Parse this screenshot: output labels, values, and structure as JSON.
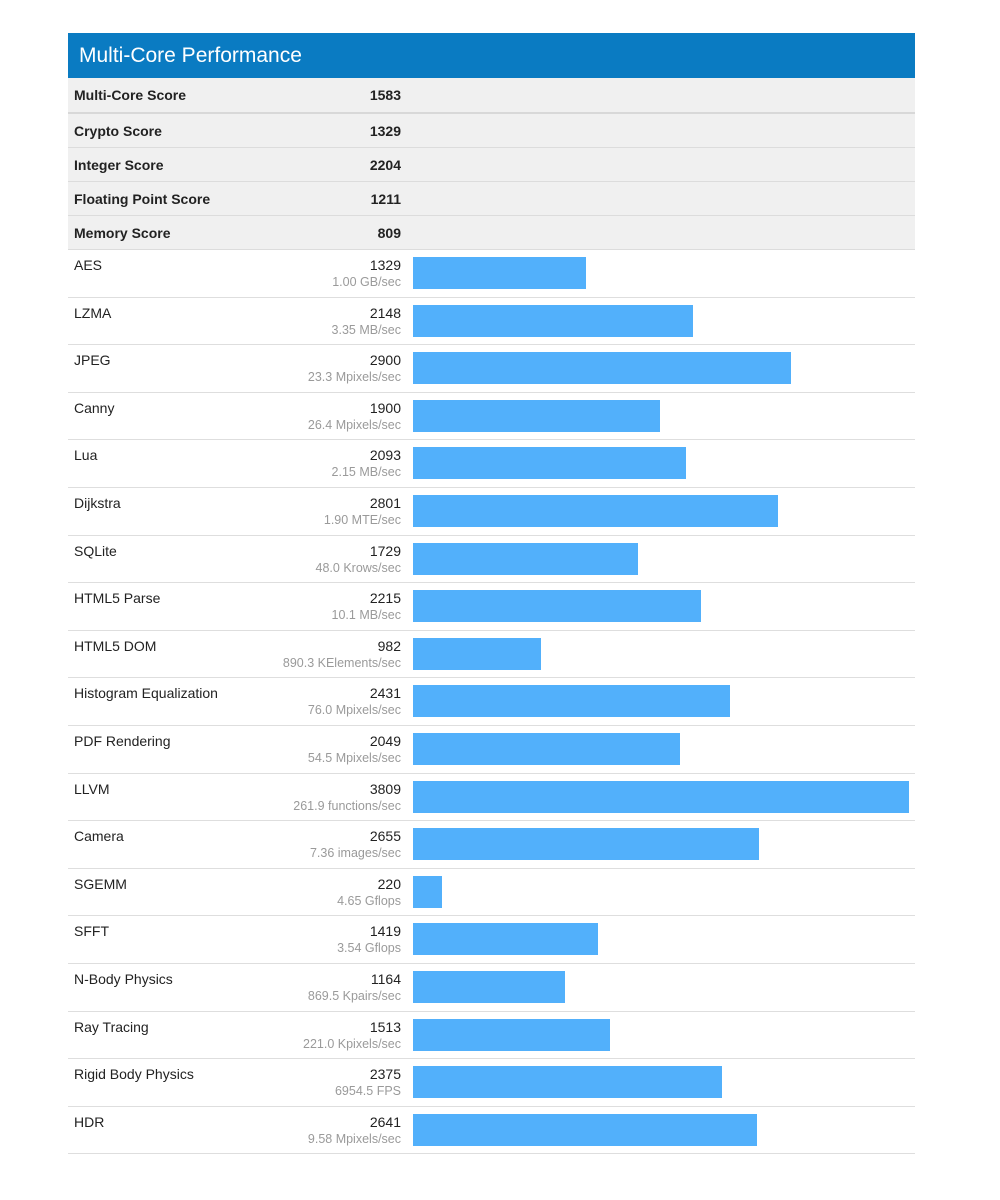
{
  "header": {
    "title": "Multi-Core Performance",
    "color": "#0a7bc2"
  },
  "summary": [
    {
      "label": "Multi-Core Score",
      "value": "1583"
    },
    {
      "label": "Crypto Score",
      "value": "1329"
    },
    {
      "label": "Integer Score",
      "value": "2204"
    },
    {
      "label": "Floating Point Score",
      "value": "1211"
    },
    {
      "label": "Memory Score",
      "value": "809"
    }
  ],
  "benchmarks": [
    {
      "name": "AES",
      "score": "1329",
      "detail": "1.00 GB/sec"
    },
    {
      "name": "LZMA",
      "score": "2148",
      "detail": "3.35 MB/sec"
    },
    {
      "name": "JPEG",
      "score": "2900",
      "detail": "23.3 Mpixels/sec"
    },
    {
      "name": "Canny",
      "score": "1900",
      "detail": "26.4 Mpixels/sec"
    },
    {
      "name": "Lua",
      "score": "2093",
      "detail": "2.15 MB/sec"
    },
    {
      "name": "Dijkstra",
      "score": "2801",
      "detail": "1.90 MTE/sec"
    },
    {
      "name": "SQLite",
      "score": "1729",
      "detail": "48.0 Krows/sec"
    },
    {
      "name": "HTML5 Parse",
      "score": "2215",
      "detail": "10.1 MB/sec"
    },
    {
      "name": "HTML5 DOM",
      "score": "982",
      "detail": "890.3 KElements/sec"
    },
    {
      "name": "Histogram Equalization",
      "score": "2431",
      "detail": "76.0 Mpixels/sec"
    },
    {
      "name": "PDF Rendering",
      "score": "2049",
      "detail": "54.5 Mpixels/sec"
    },
    {
      "name": "LLVM",
      "score": "3809",
      "detail": "261.9 functions/sec"
    },
    {
      "name": "Camera",
      "score": "2655",
      "detail": "7.36 images/sec"
    },
    {
      "name": "SGEMM",
      "score": "220",
      "detail": "4.65 Gflops"
    },
    {
      "name": "SFFT",
      "score": "1419",
      "detail": "3.54 Gflops"
    },
    {
      "name": "N-Body Physics",
      "score": "1164",
      "detail": "869.5 Kpairs/sec"
    },
    {
      "name": "Ray Tracing",
      "score": "1513",
      "detail": "221.0 Kpixels/sec"
    },
    {
      "name": "Rigid Body Physics",
      "score": "2375",
      "detail": "6954.5 FPS"
    },
    {
      "name": "HDR",
      "score": "2641",
      "detail": "9.58 Mpixels/sec"
    }
  ],
  "chart_data": {
    "type": "bar",
    "orientation": "horizontal",
    "title": "Multi-Core Performance",
    "categories": [
      "AES",
      "LZMA",
      "JPEG",
      "Canny",
      "Lua",
      "Dijkstra",
      "SQLite",
      "HTML5 Parse",
      "HTML5 DOM",
      "Histogram Equalization",
      "PDF Rendering",
      "LLVM",
      "Camera",
      "SGEMM",
      "SFFT",
      "N-Body Physics",
      "Ray Tracing",
      "Rigid Body Physics",
      "HDR"
    ],
    "values": [
      1329,
      2148,
      2900,
      1900,
      2093,
      2801,
      1729,
      2215,
      982,
      2431,
      2049,
      3809,
      2655,
      220,
      1419,
      1164,
      1513,
      2375,
      2641
    ],
    "annotations": [
      "1.00 GB/sec",
      "3.35 MB/sec",
      "23.3 Mpixels/sec",
      "26.4 Mpixels/sec",
      "2.15 MB/sec",
      "1.90 MTE/sec",
      "48.0 Krows/sec",
      "10.1 MB/sec",
      "890.3 KElements/sec",
      "76.0 Mpixels/sec",
      "54.5 Mpixels/sec",
      "261.9 functions/sec",
      "7.36 images/sec",
      "4.65 Gflops",
      "3.54 Gflops",
      "869.5 Kpairs/sec",
      "221.0 Kpixels/sec",
      "6954.5 FPS",
      "9.58 Mpixels/sec"
    ],
    "summary_scores": {
      "Multi-Core Score": 1583,
      "Crypto Score": 1329,
      "Integer Score": 2204,
      "Floating Point Score": 1211,
      "Memory Score": 809
    },
    "xlabel": "",
    "ylabel": "",
    "xlim": [
      0,
      3809
    ],
    "bar_color": "#52b0fb",
    "grid": false,
    "legend": null
  }
}
